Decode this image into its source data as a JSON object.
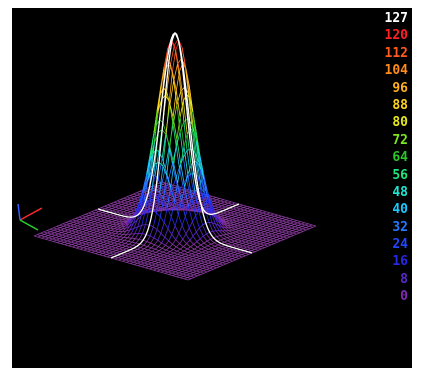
{
  "chart_data": {
    "type": "surface",
    "surface": {
      "shape": "gaussian-peak",
      "peak_value": 127,
      "base_value": 0,
      "x_range": [
        -1,
        1
      ],
      "y_range": [
        -1,
        1
      ]
    },
    "colorbar": {
      "placement": "right",
      "min": 0,
      "max": 127,
      "labels": [
        {
          "text": "127",
          "color": "#ffffff"
        },
        {
          "text": "120",
          "color": "#ff2020"
        },
        {
          "text": "112",
          "color": "#ff5a20"
        },
        {
          "text": "104",
          "color": "#ff8c1a"
        },
        {
          "text": "96",
          "color": "#ffb020"
        },
        {
          "text": "88",
          "color": "#ffd21e"
        },
        {
          "text": "80",
          "color": "#e6e61e"
        },
        {
          "text": "72",
          "color": "#7ee61e"
        },
        {
          "text": "64",
          "color": "#28c828"
        },
        {
          "text": "56",
          "color": "#1ee67a"
        },
        {
          "text": "48",
          "color": "#1ee6d2"
        },
        {
          "text": "40",
          "color": "#1ec8ff"
        },
        {
          "text": "32",
          "color": "#2878ff"
        },
        {
          "text": "24",
          "color": "#2046ff"
        },
        {
          "text": "16",
          "color": "#2828e6"
        },
        {
          "text": "8",
          "color": "#5a28c8"
        },
        {
          "text": "0",
          "color": "#8228b4"
        }
      ]
    },
    "grid": true,
    "colors": {
      "background": "#000000",
      "base_plane": "#8a3aa0",
      "contour": "#ffffff"
    }
  }
}
